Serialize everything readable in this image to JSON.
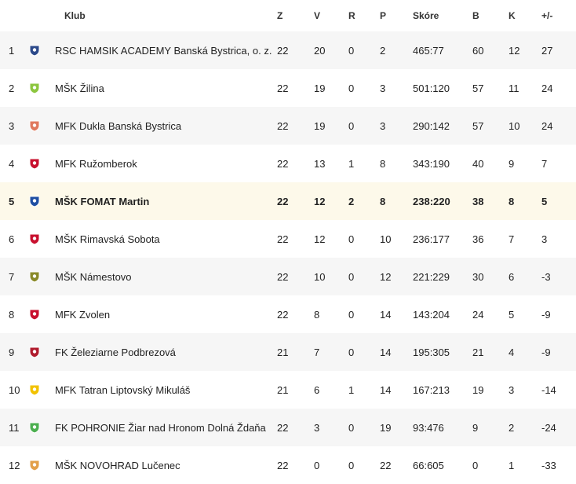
{
  "header": {
    "pos": "",
    "crest": "",
    "club": "Klub",
    "z": "Z",
    "v": "V",
    "r": "R",
    "p": "P",
    "score": "Skóre",
    "b": "B",
    "k": "K",
    "diff": "+/-"
  },
  "rows": [
    {
      "pos": "1",
      "icon": "club-crest-icon",
      "club": "RSC HAMSIK ACADEMY Banská Bystrica, o. z.",
      "z": "22",
      "v": "20",
      "r": "0",
      "p": "2",
      "score": "465:77",
      "b": "60",
      "k": "12",
      "diff": "27"
    },
    {
      "pos": "2",
      "icon": "club-crest-icon",
      "club": "MŠK Žilina",
      "z": "22",
      "v": "19",
      "r": "0",
      "p": "3",
      "score": "501:120",
      "b": "57",
      "k": "11",
      "diff": "24"
    },
    {
      "pos": "3",
      "icon": "club-crest-icon",
      "club": "MFK Dukla Banská Bystrica",
      "z": "22",
      "v": "19",
      "r": "0",
      "p": "3",
      "score": "290:142",
      "b": "57",
      "k": "10",
      "diff": "24"
    },
    {
      "pos": "4",
      "icon": "club-crest-icon",
      "club": "MFK Ružomberok",
      "z": "22",
      "v": "13",
      "r": "1",
      "p": "8",
      "score": "343:190",
      "b": "40",
      "k": "9",
      "diff": "7"
    },
    {
      "pos": "5",
      "icon": "club-crest-icon",
      "club": "MŠK FOMAT Martin",
      "z": "22",
      "v": "12",
      "r": "2",
      "p": "8",
      "score": "238:220",
      "b": "38",
      "k": "8",
      "diff": "5"
    },
    {
      "pos": "6",
      "icon": "club-crest-icon",
      "club": "MŠK Rimavská Sobota",
      "z": "22",
      "v": "12",
      "r": "0",
      "p": "10",
      "score": "236:177",
      "b": "36",
      "k": "7",
      "diff": "3"
    },
    {
      "pos": "7",
      "icon": "club-crest-icon",
      "club": "MŠK Námestovo",
      "z": "22",
      "v": "10",
      "r": "0",
      "p": "12",
      "score": "221:229",
      "b": "30",
      "k": "6",
      "diff": "-3"
    },
    {
      "pos": "8",
      "icon": "club-crest-icon",
      "club": "MFK Zvolen",
      "z": "22",
      "v": "8",
      "r": "0",
      "p": "14",
      "score": "143:204",
      "b": "24",
      "k": "5",
      "diff": "-9"
    },
    {
      "pos": "9",
      "icon": "club-crest-icon",
      "club": "FK Železiarne Podbrezová",
      "z": "21",
      "v": "7",
      "r": "0",
      "p": "14",
      "score": "195:305",
      "b": "21",
      "k": "4",
      "diff": "-9"
    },
    {
      "pos": "10",
      "icon": "club-crest-icon",
      "club": "MFK Tatran Liptovský Mikuláš",
      "z": "21",
      "v": "6",
      "r": "1",
      "p": "14",
      "score": "167:213",
      "b": "19",
      "k": "3",
      "diff": "-14"
    },
    {
      "pos": "11",
      "icon": "club-crest-icon",
      "club": "FK POHRONIE Žiar nad Hronom Dolná Ždaňa",
      "z": "22",
      "v": "3",
      "r": "0",
      "p": "19",
      "score": "93:476",
      "b": "9",
      "k": "2",
      "diff": "-24"
    },
    {
      "pos": "12",
      "icon": "club-crest-icon",
      "club": "MŠK NOVOHRAD Lučenec",
      "z": "22",
      "v": "0",
      "r": "0",
      "p": "22",
      "score": "66:605",
      "b": "0",
      "k": "1",
      "diff": "-33"
    }
  ],
  "highlight_row": "5",
  "colors": {
    "stripe": "#f6f6f6",
    "highlight": "#fdf9ea",
    "crests": [
      "#2c4a8a",
      "#8cc63f",
      "#e07a5f",
      "#c8102e",
      "#1f4fa3",
      "#c8102e",
      "#8a8a2a",
      "#c8102e",
      "#b01c2e",
      "#f2c200",
      "#4caf50",
      "#e3a04a"
    ]
  }
}
